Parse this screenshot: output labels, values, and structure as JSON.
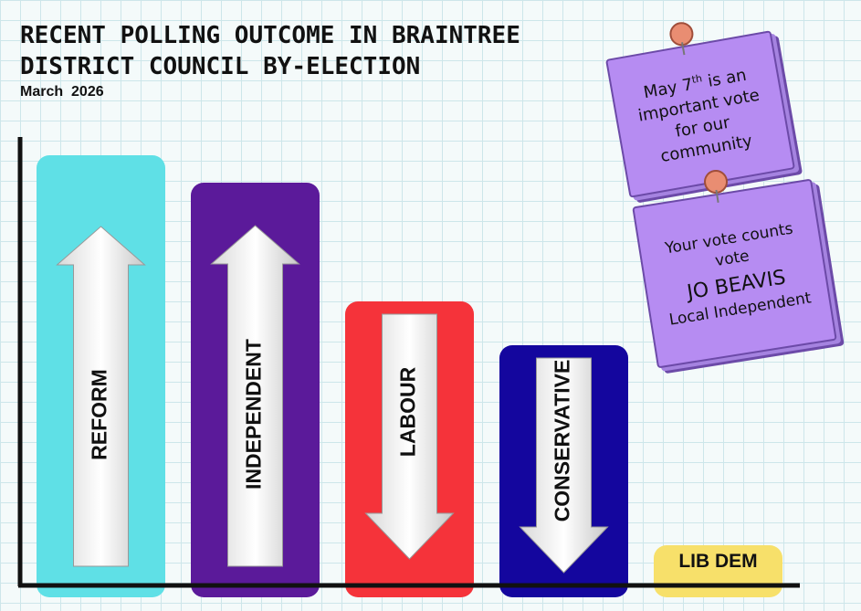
{
  "chart_data": {
    "type": "bar",
    "title": "RECENT POLLING OUTCOME IN BRAINTREE DISTRICT COUNCIL BY-ELECTION",
    "subtitle": "March  2026",
    "categories": [
      "REFORM",
      "INDEPENDENT",
      "LABOUR",
      "CONSERVATIVE",
      "LIB DEM"
    ],
    "values": [
      470,
      440,
      310,
      262,
      43
    ],
    "value_note_units": "relative bar height (no axis scale printed)",
    "trend": [
      "up",
      "up",
      "down",
      "down",
      "none"
    ],
    "colors": [
      "#5fe0e6",
      "#5b1a9a",
      "#f5333a",
      "#14069e",
      "#f7e06a"
    ],
    "label_colors": [
      "#111111",
      "#111111",
      "#111111",
      "#111111",
      "#111111"
    ],
    "grid": false,
    "xlabel": "",
    "ylabel": ""
  },
  "notes": {
    "note1": {
      "line1": "May 7",
      "sup": "th",
      "line1b": " is an",
      "line2": "important vote",
      "line3": "for our",
      "line4": "community"
    },
    "note2": {
      "line1": "Your vote counts",
      "line2": "vote",
      "line3": "JO BEAVIS",
      "line4": "Local Independent"
    }
  },
  "theme": {
    "axis": "#111111",
    "note_bg": "#b68cf2"
  }
}
